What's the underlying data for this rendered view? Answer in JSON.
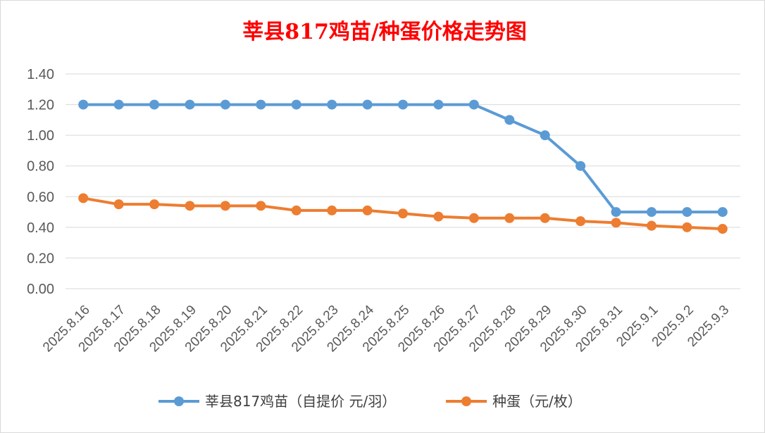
{
  "chart_data": {
    "type": "line",
    "title": "莘县817鸡苗/种蛋价格走势图",
    "xlabel": "",
    "ylabel": "",
    "categories": [
      "2025.8.16",
      "2025.8.17",
      "2025.8.18",
      "2025.8.19",
      "2025.8.20",
      "2025.8.21",
      "2025.8.22",
      "2025.8.23",
      "2025.8.24",
      "2025.8.25",
      "2025.8.26",
      "2025.8.27",
      "2025.8.28",
      "2025.8.29",
      "2025.8.30",
      "2025.8.31",
      "2025.9.1",
      "2025.9.2",
      "2025.9.3"
    ],
    "y_ticks": [
      "0.00",
      "0.20",
      "0.40",
      "0.60",
      "0.80",
      "1.00",
      "1.20",
      "1.40"
    ],
    "ylim": [
      0,
      1.4
    ],
    "grid": true,
    "legend_position": "bottom",
    "series": [
      {
        "name": "莘县817鸡苗（自提价 元/羽）",
        "color": "#5b9bd5",
        "values": [
          1.2,
          1.2,
          1.2,
          1.2,
          1.2,
          1.2,
          1.2,
          1.2,
          1.2,
          1.2,
          1.2,
          1.2,
          1.1,
          1.0,
          0.8,
          0.5,
          0.5,
          0.5,
          0.5
        ]
      },
      {
        "name": "种蛋（元/枚）",
        "color": "#ed7d31",
        "values": [
          0.59,
          0.55,
          0.55,
          0.54,
          0.54,
          0.54,
          0.51,
          0.51,
          0.51,
          0.49,
          0.47,
          0.46,
          0.46,
          0.46,
          0.44,
          0.43,
          0.41,
          0.4,
          0.39
        ]
      }
    ]
  }
}
